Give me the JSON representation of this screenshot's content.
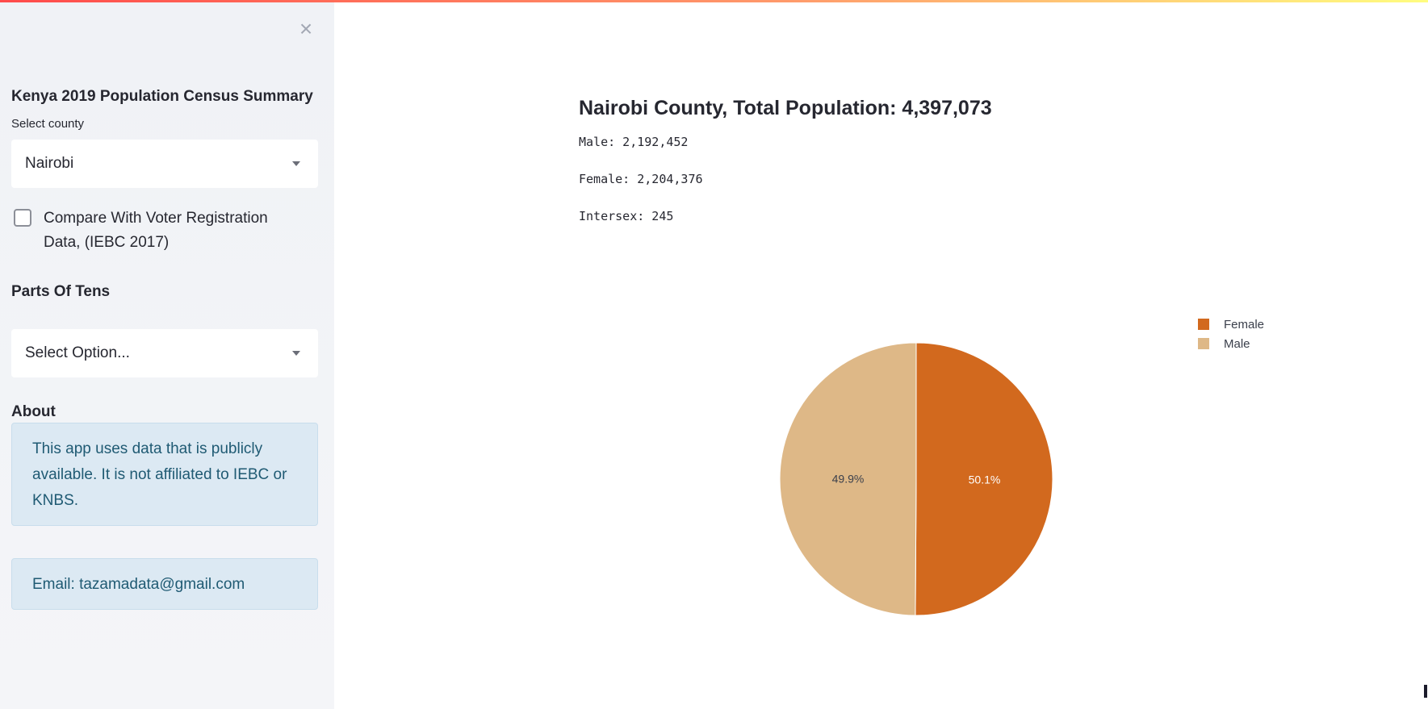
{
  "sidebar": {
    "title": "Kenya 2019 Population Census Summary",
    "select_county_label": "Select county",
    "county_value": "Nairobi",
    "compare_checkbox_label": "Compare With Voter Registration Data, (IEBC 2017)",
    "compare_checked": false,
    "parts_heading": "Parts Of Tens",
    "parts_select_value": "Select Option...",
    "about_heading": "About",
    "about_text": "This app uses data that is publicly available. It is not affiliated to IEBC or KNBS.",
    "email_text": "Email: tazamadata@gmail.com",
    "close_symbol": "×"
  },
  "main": {
    "title": "Nairobi County, Total Population: 4,397,073",
    "stats": {
      "male": "Male: 2,192,452",
      "female": "Female: 2,204,376",
      "intersex": "Intersex: 245"
    }
  },
  "colors": {
    "accent_gradient": [
      "#ff4b4b",
      "#fffd80"
    ],
    "female": "#d2691e",
    "male": "#deb887",
    "info_bg": "#dce9f3",
    "info_text": "#1f5a73"
  },
  "chart_data": {
    "type": "pie",
    "categories": [
      "Female",
      "Male"
    ],
    "values": [
      50.1,
      49.9
    ],
    "labels": [
      "50.1%",
      "49.9%"
    ],
    "colors": [
      "#d2691e",
      "#deb887"
    ],
    "legend": [
      "Female",
      "Male"
    ],
    "legend_position": "top-right"
  }
}
